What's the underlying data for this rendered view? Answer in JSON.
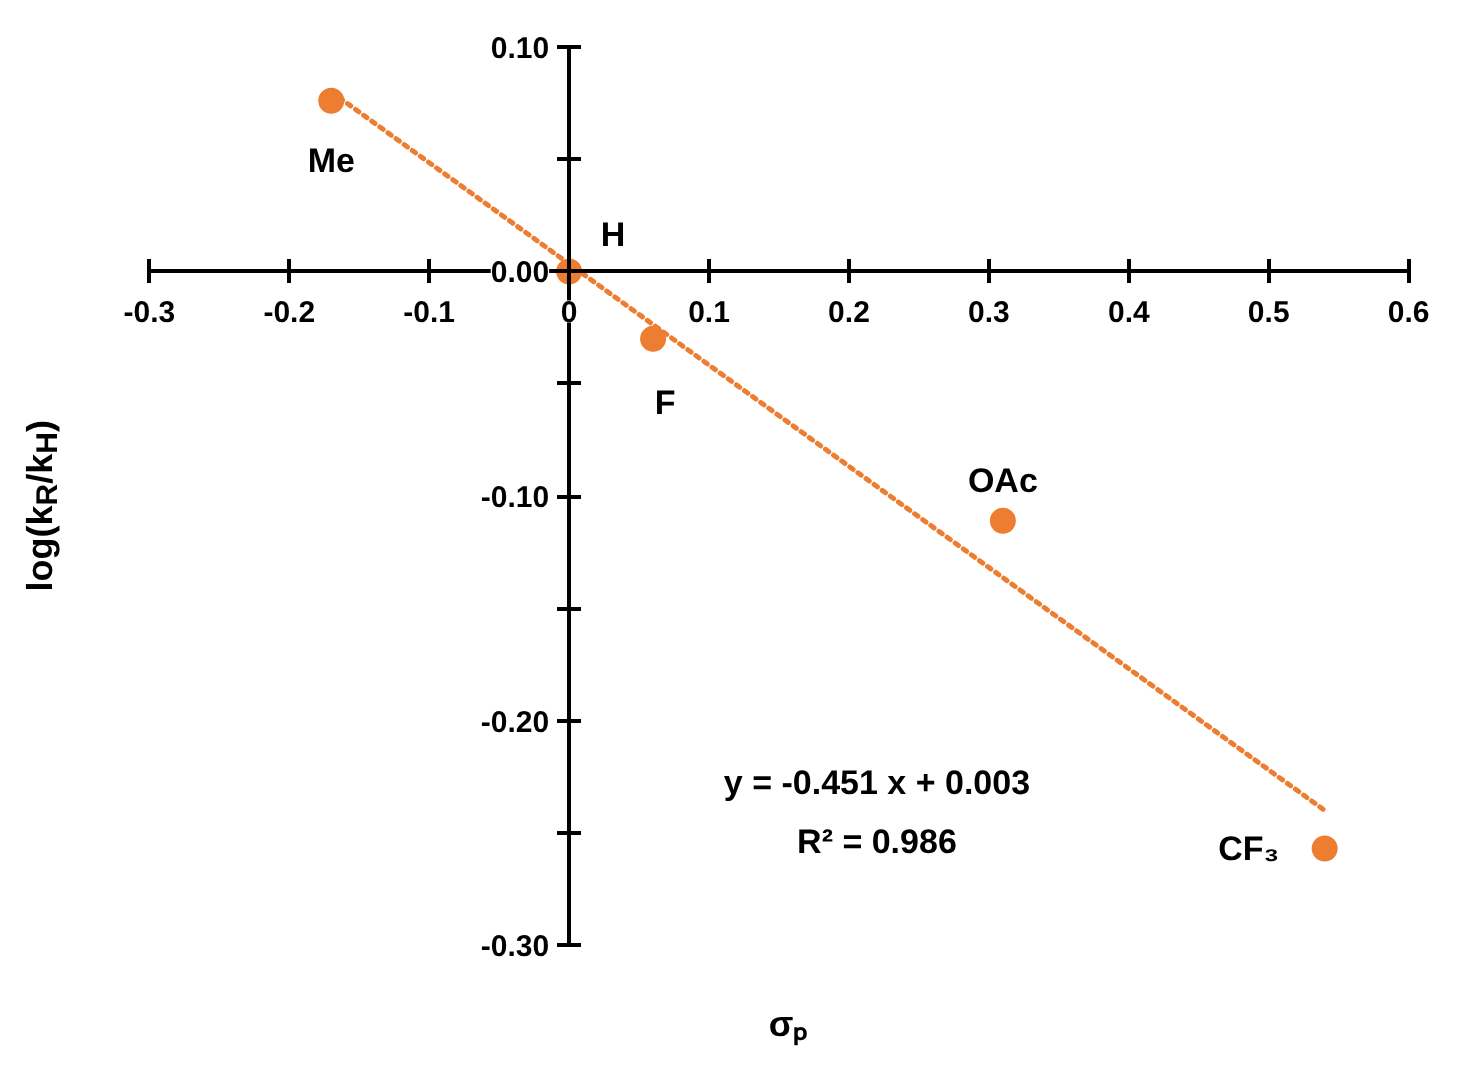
{
  "chart_data": {
    "type": "scatter",
    "xlabel": "σₚ",
    "ylabel": "log(k$_{R}$/k$_{H}$)",
    "x": [
      -0.17,
      0,
      0.06,
      0.31,
      0.54
    ],
    "series": [
      {
        "color": "#ed7d31",
        "marker": "circle",
        "values": [
          0.076,
          0.0,
          -0.03,
          -0.111,
          -0.257
        ]
      },
      {
        "type": "line",
        "color": "#ed7d31",
        "line_style": "dotted",
        "marker": "none",
        "x": [
          -0.17,
          0.54
        ],
        "values": [
          0.08,
          -0.24
        ]
      }
    ],
    "xlim": [
      -0.3,
      0.6
    ],
    "ylim": [
      -0.3,
      0.1
    ],
    "xticks": [
      -0.3,
      -0.2,
      -0.1,
      {
        "value": 0,
        "label": "0"
      },
      0.1,
      0.2,
      0.3,
      0.4,
      0.5,
      0.6
    ],
    "yticks": [
      {
        "value": -0.3,
        "label": "-0.30"
      },
      {
        "value": -0.25,
        "label": null
      },
      {
        "value": -0.2,
        "label": "-0.20"
      },
      {
        "value": -0.15,
        "label": null
      },
      {
        "value": -0.1,
        "label": "-0.10"
      },
      {
        "value": -0.05,
        "label": null
      },
      {
        "value": 0.0,
        "label": "0.00"
      },
      {
        "value": 0.05,
        "label": null
      },
      {
        "value": 0.1,
        "label": "0.10"
      }
    ],
    "annotations": [
      {
        "text": "Me",
        "x": -0.17,
        "y": 0.076
      },
      {
        "text": "H",
        "x": 0,
        "y": 0.0
      },
      {
        "text": "F",
        "x": 0.06,
        "y": -0.03
      },
      {
        "text": "OAc",
        "x": 0.31,
        "y": -0.111
      },
      {
        "text": "CF₃",
        "x": 0.54,
        "y": -0.257
      },
      "y = -0.451 x + 0.003",
      "R² = 0.986"
    ]
  }
}
